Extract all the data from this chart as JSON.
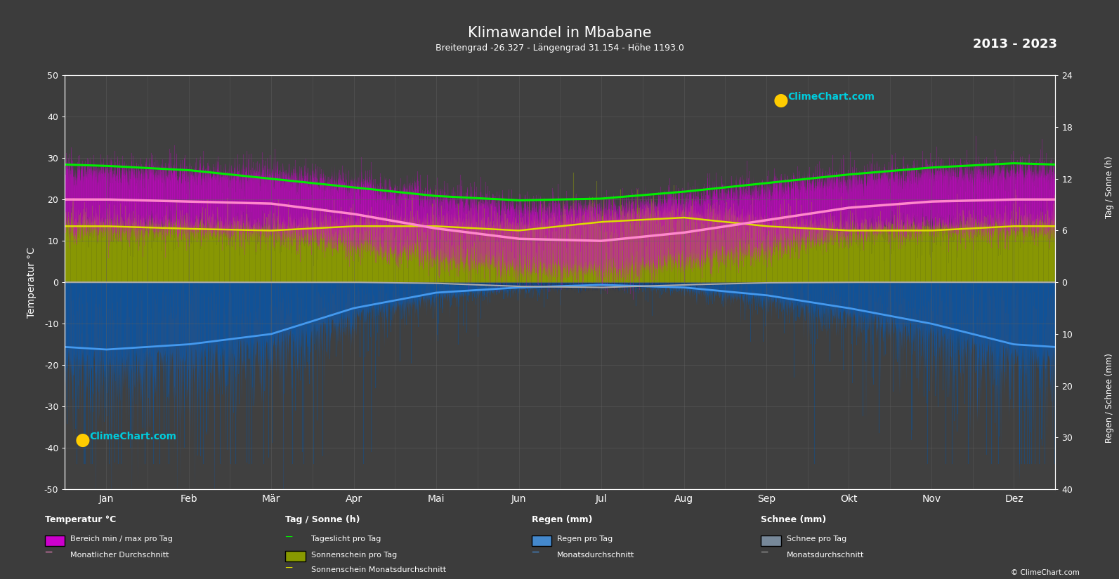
{
  "title": "Klimawandel in Mbabane",
  "subtitle": "Breitengrad -26.327 - Längengrad 31.154 - Höhe 1193.0",
  "year_range": "2013 - 2023",
  "background_color": "#3c3c3c",
  "plot_bg_color": "#404040",
  "months": [
    "Jan",
    "Feb",
    "Mär",
    "Apr",
    "Mai",
    "Jun",
    "Jul",
    "Aug",
    "Sep",
    "Okt",
    "Nov",
    "Dez"
  ],
  "temp_ylim": [
    -50,
    50
  ],
  "temp_avg_monthly": [
    20.0,
    19.5,
    19.0,
    16.5,
    13.0,
    10.5,
    10.0,
    12.0,
    15.0,
    18.0,
    19.5,
    20.0
  ],
  "temp_min_monthly": [
    13.0,
    13.0,
    12.0,
    9.5,
    6.0,
    3.5,
    3.0,
    5.0,
    8.5,
    12.0,
    13.0,
    13.0
  ],
  "temp_max_monthly": [
    27.0,
    26.5,
    26.0,
    24.0,
    20.5,
    18.0,
    18.0,
    20.0,
    23.0,
    25.0,
    26.5,
    27.0
  ],
  "daylight_monthly": [
    13.5,
    13.0,
    12.0,
    11.0,
    10.0,
    9.5,
    9.7,
    10.5,
    11.5,
    12.5,
    13.3,
    13.8
  ],
  "sunshine_avg_monthly": [
    6.5,
    6.2,
    6.0,
    6.5,
    6.5,
    6.0,
    7.0,
    7.5,
    6.5,
    6.0,
    6.0,
    6.5
  ],
  "rain_avg_monthly": [
    13.0,
    12.0,
    10.0,
    5.0,
    2.0,
    1.0,
    0.5,
    1.0,
    2.5,
    5.0,
    8.0,
    12.0
  ],
  "snow_avg_monthly": [
    0.0,
    0.0,
    0.0,
    0.0,
    0.2,
    0.8,
    1.0,
    0.5,
    0.1,
    0.0,
    0.0,
    0.0
  ],
  "sun_scale": 2.0833,
  "rain_scale": -1.25,
  "color_temp_bar": "#cc00cc",
  "color_temp_line": "#ff88cc",
  "color_daylight": "#00ee00",
  "color_sunshine_bar": "#889900",
  "color_sunshine_line": "#dddd00",
  "color_rain_bar": "#1a5599",
  "color_rain_line": "#4499ee",
  "color_snow_bar": "#223355",
  "color_snow_line": "#aaaaaa",
  "grid_color": "#606060",
  "text_color": "#ffffff",
  "logo_color": "#00cccc",
  "logo_color2": "#cc88ff"
}
